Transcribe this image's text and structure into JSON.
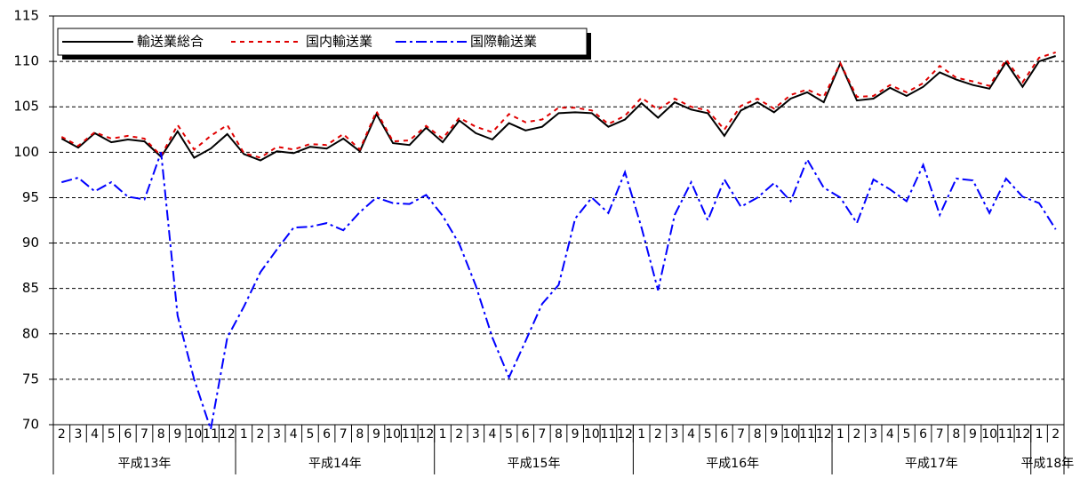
{
  "chart_data": {
    "type": "line",
    "categories": [
      "2",
      "3",
      "4",
      "5",
      "6",
      "7",
      "8",
      "9",
      "10",
      "11",
      "12",
      "1",
      "2",
      "3",
      "4",
      "5",
      "6",
      "7",
      "8",
      "9",
      "10",
      "11",
      "12",
      "1",
      "2",
      "3",
      "4",
      "5",
      "6",
      "7",
      "8",
      "9",
      "10",
      "11",
      "12",
      "1",
      "2",
      "3",
      "4",
      "5",
      "6",
      "7",
      "8",
      "9",
      "10",
      "11",
      "12",
      "1",
      "2",
      "3",
      "4",
      "5",
      "6",
      "7",
      "8",
      "9",
      "10",
      "11",
      "12",
      "1",
      "2"
    ],
    "category_groups": [
      {
        "label": "平成13年",
        "size": 11
      },
      {
        "label": "平成14年",
        "size": 12
      },
      {
        "label": "平成15年",
        "size": 12
      },
      {
        "label": "平成16年",
        "size": 12
      },
      {
        "label": "平成17年",
        "size": 12
      },
      {
        "label": "平成18年",
        "size": 2
      }
    ],
    "series": [
      {
        "name": "輸送業総合",
        "color": "#000000",
        "dash": "solid",
        "values": [
          101.5,
          100.5,
          102.1,
          101.1,
          101.4,
          101.2,
          99.5,
          102.3,
          99.4,
          100.4,
          102.0,
          99.8,
          99.1,
          100.1,
          99.9,
          100.6,
          100.4,
          101.5,
          100.1,
          104.2,
          101.0,
          100.8,
          102.7,
          101.1,
          103.5,
          102.1,
          101.4,
          103.2,
          102.4,
          102.8,
          104.3,
          104.4,
          104.3,
          102.8,
          103.6,
          105.4,
          103.8,
          105.5,
          104.7,
          104.3,
          101.8,
          104.6,
          105.5,
          104.4,
          105.9,
          106.6,
          105.5,
          109.8,
          105.7,
          105.9,
          107.1,
          106.2,
          107.2,
          108.8,
          108.0,
          107.4,
          107.0,
          109.9,
          107.2,
          110.0,
          110.6
        ]
      },
      {
        "name": "国内輸送業",
        "color": "#e00000",
        "dash": "dashed",
        "values": [
          101.7,
          100.7,
          102.2,
          101.5,
          101.8,
          101.5,
          99.6,
          103.0,
          100.3,
          101.8,
          103.0,
          99.9,
          99.4,
          100.6,
          100.3,
          100.9,
          100.8,
          102.0,
          100.3,
          104.5,
          101.2,
          101.3,
          102.9,
          101.5,
          103.8,
          102.8,
          102.2,
          104.2,
          103.3,
          103.6,
          104.9,
          104.9,
          104.6,
          103.1,
          104.0,
          106.0,
          104.7,
          105.9,
          105.0,
          104.6,
          102.5,
          105.1,
          105.9,
          104.8,
          106.3,
          106.9,
          106.1,
          109.8,
          106.1,
          106.2,
          107.4,
          106.6,
          107.6,
          109.5,
          108.2,
          107.8,
          107.3,
          110.2,
          107.7,
          110.4,
          111.0
        ]
      },
      {
        "name": "国際輸送業",
        "color": "#0000ff",
        "dash": "dashdot",
        "values": [
          96.7,
          97.2,
          95.7,
          96.7,
          95.1,
          94.8,
          100.0,
          82.0,
          75.0,
          69.5,
          79.6,
          83.0,
          86.8,
          89.3,
          91.7,
          91.8,
          92.2,
          91.4,
          93.4,
          95.0,
          94.4,
          94.3,
          95.3,
          93.0,
          89.9,
          85.3,
          79.6,
          75.2,
          79.2,
          83.3,
          85.4,
          92.7,
          95.0,
          93.3,
          97.8,
          91.7,
          84.8,
          93.1,
          96.7,
          92.5,
          97.0,
          94.0,
          95.0,
          96.6,
          94.6,
          99.2,
          96.1,
          95.0,
          92.2,
          97.0,
          95.9,
          94.6,
          98.6,
          93.1,
          97.1,
          96.9,
          93.3,
          97.1,
          95.1,
          94.4,
          91.5
        ]
      }
    ],
    "ylim": [
      70,
      115
    ],
    "yticks": [
      70,
      75,
      80,
      85,
      90,
      95,
      100,
      105,
      110,
      115
    ],
    "grid": true,
    "legend": "top-left"
  }
}
